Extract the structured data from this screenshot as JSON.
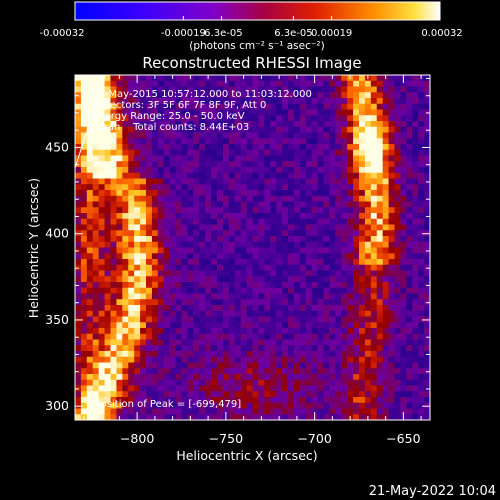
{
  "colorbar": {
    "ticks": [
      "-0.00032",
      "-0.00019",
      "-6.3e-05",
      "6.3e-05",
      "0.00019",
      "0.00032"
    ],
    "range": [
      -0.00032,
      0.00032
    ],
    "unit_label": "(photons cm⁻² s⁻¹ asec⁻²)"
  },
  "chart_data": {
    "type": "heatmap",
    "title": "Reconstructed RHESSI Image",
    "xlabel": "Heliocentric X (arcsec)",
    "ylabel": "Heliocentric Y (arcsec)",
    "xlim": [
      -835,
      -635
    ],
    "ylim": [
      292,
      492
    ],
    "x_ticks": [
      -800,
      -750,
      -700,
      -650
    ],
    "y_ticks": [
      300,
      350,
      400,
      450
    ],
    "x_tick_labels": [
      "−800",
      "−750",
      "−700",
      "−650"
    ],
    "y_tick_labels": [
      "300",
      "350",
      "400",
      "450"
    ],
    "annotations": [
      "19-May-2015 10:57:12.000 to 11:03:12.000",
      "Detectors: 3F 5F 6F 7F 8F 9F, Att 0",
      "Energy Range: 25.0 - 50.0 keV",
      "Clean    Total counts: 8.44E+03"
    ],
    "peak_label": "Position of Peak = [-699,479]",
    "peak_position": [
      -699,
      479
    ],
    "total_counts": 8440,
    "energy_range_keV": [
      25.0,
      50.0
    ],
    "colormap": "blue-purple-red-yellow-white"
  },
  "footer": {
    "date": "21-May-2022 10:04"
  }
}
